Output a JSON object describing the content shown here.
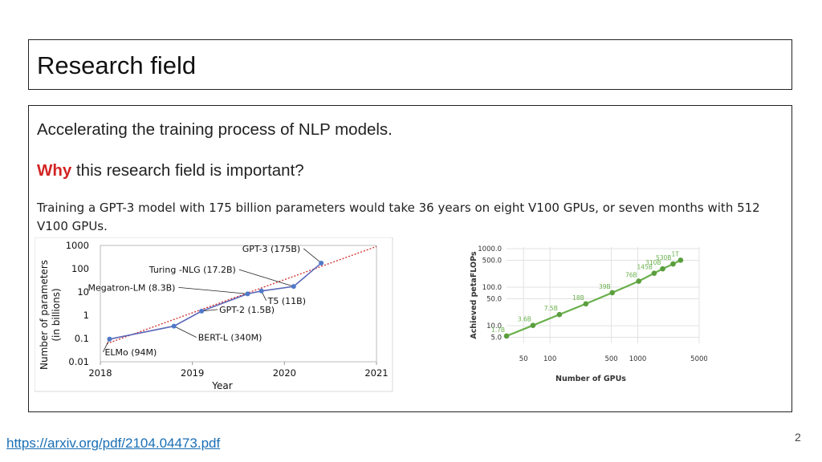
{
  "slide": {
    "title": "Research field",
    "line1": "Accelerating the training process of NLP models.",
    "why_word": "Why",
    "line2_rest": " this research field is important?",
    "line3": "Training a GPT-3 model with 175 billion parameters would take 36 years on eight V100 GPUs, or seven months with 512 V100 GPUs.",
    "link": "https://arxiv.org/pdf/2104.04473.pdf",
    "page_number": "2",
    "colors": {
      "accent": "#d32424",
      "link": "#1a6fb5"
    }
  },
  "chart_data": [
    {
      "type": "line",
      "title": "",
      "xlabel": "Year",
      "ylabel": "Number of parameters (in billions)",
      "x_ticks": [
        "2018",
        "2019",
        "2020",
        "2021"
      ],
      "y_ticks": [
        "0.01",
        "0.1",
        "1",
        "10",
        "100",
        "1000"
      ],
      "y_scale": "log",
      "ylim": [
        0.01,
        1000
      ],
      "xlim": [
        2018,
        2021
      ],
      "points": [
        {
          "label": "ELMo (94M)",
          "x": 2018.1,
          "y": 0.094
        },
        {
          "label": "BERT-L (340M)",
          "x": 2018.8,
          "y": 0.34
        },
        {
          "label": "GPT-2 (1.5B)",
          "x": 2019.1,
          "y": 1.5
        },
        {
          "label": "Megatron-LM (8.3B)",
          "x": 2019.6,
          "y": 8.3
        },
        {
          "label": "T5 (11B)",
          "x": 2019.75,
          "y": 11
        },
        {
          "label": "Turing -NLG (17.2B)",
          "x": 2020.1,
          "y": 17.2
        },
        {
          "label": "GPT-3 (175B)",
          "x": 2020.4,
          "y": 175
        }
      ],
      "trend_line": true,
      "colors": {
        "line": "#5a67b8",
        "marker": "#4f79c9",
        "trend": "#d22a2a"
      }
    },
    {
      "type": "line",
      "title": "",
      "xlabel": "Number of GPUs",
      "ylabel": "Achieved petaFLOPs",
      "x_scale": "log",
      "y_scale": "log",
      "x_ticks": [
        "50",
        "100",
        "500",
        "1000",
        "5000"
      ],
      "y_ticks": [
        "5.0",
        "10.0",
        "50.0",
        "100.0",
        "500.0",
        "1000.0"
      ],
      "xlim": [
        32,
        5000
      ],
      "ylim": [
        3.5,
        1100
      ],
      "points": [
        {
          "label": "1.7B",
          "x": 32,
          "y": 5.4
        },
        {
          "label": "3.6B",
          "x": 64,
          "y": 10.2
        },
        {
          "label": "7.5B",
          "x": 128,
          "y": 19.5
        },
        {
          "label": "18B",
          "x": 256,
          "y": 37
        },
        {
          "label": "39B",
          "x": 512,
          "y": 72
        },
        {
          "label": "76B",
          "x": 1024,
          "y": 143
        },
        {
          "label": "145B",
          "x": 1536,
          "y": 230
        },
        {
          "label": "310B",
          "x": 1920,
          "y": 300
        },
        {
          "label": "530B",
          "x": 2520,
          "y": 400
        },
        {
          "label": "1T",
          "x": 3072,
          "y": 502
        }
      ],
      "colors": {
        "line": "#6ab04c",
        "marker": "#5a9e3e",
        "label": "#6ab04c"
      }
    }
  ]
}
